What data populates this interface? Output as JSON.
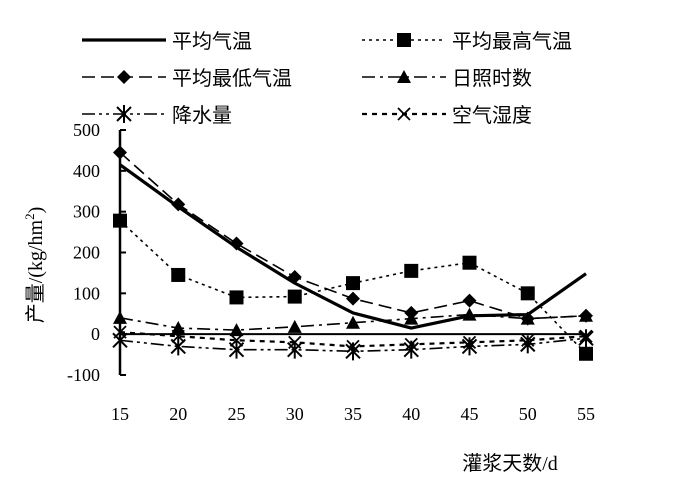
{
  "chart_data": {
    "type": "line",
    "x": [
      15,
      20,
      25,
      30,
      35,
      40,
      45,
      50,
      55
    ],
    "xlabel": "灌浆天数/d",
    "ylabel": "产量/(kg/hm",
    "ylabel_sup": "2",
    "ylabel_end": ")",
    "ylim": [
      -100,
      500
    ],
    "yticks": [
      -100,
      0,
      100,
      200,
      300,
      400,
      500
    ],
    "xlim": [
      15,
      55
    ],
    "grid": false,
    "legend_position": "top",
    "series": [
      {
        "name": "平均气温",
        "style": "solid",
        "marker": "none",
        "values": [
          415,
          312,
          213,
          125,
          52,
          15,
          45,
          48,
          148
        ]
      },
      {
        "name": "平均最高气温",
        "style": "dotted",
        "marker": "square",
        "values": [
          278,
          145,
          90,
          92,
          125,
          155,
          175,
          100,
          -48
        ]
      },
      {
        "name": "平均最低气温",
        "style": "longdash",
        "marker": "diamond",
        "values": [
          445,
          318,
          222,
          140,
          87,
          52,
          82,
          38,
          45
        ]
      },
      {
        "name": "日照时数",
        "style": "dashdot",
        "marker": "triangle",
        "values": [
          40,
          15,
          10,
          18,
          28,
          38,
          48,
          38,
          45
        ]
      },
      {
        "name": "降水量",
        "style": "dashdotdot",
        "marker": "asterisk",
        "values": [
          -15,
          -30,
          -38,
          -38,
          -42,
          -38,
          -30,
          -25,
          -10
        ]
      },
      {
        "name": "空气湿度",
        "style": "shortdash",
        "marker": "x",
        "values": [
          5,
          -5,
          -15,
          -20,
          -30,
          -25,
          -20,
          -15,
          -5
        ]
      }
    ]
  }
}
